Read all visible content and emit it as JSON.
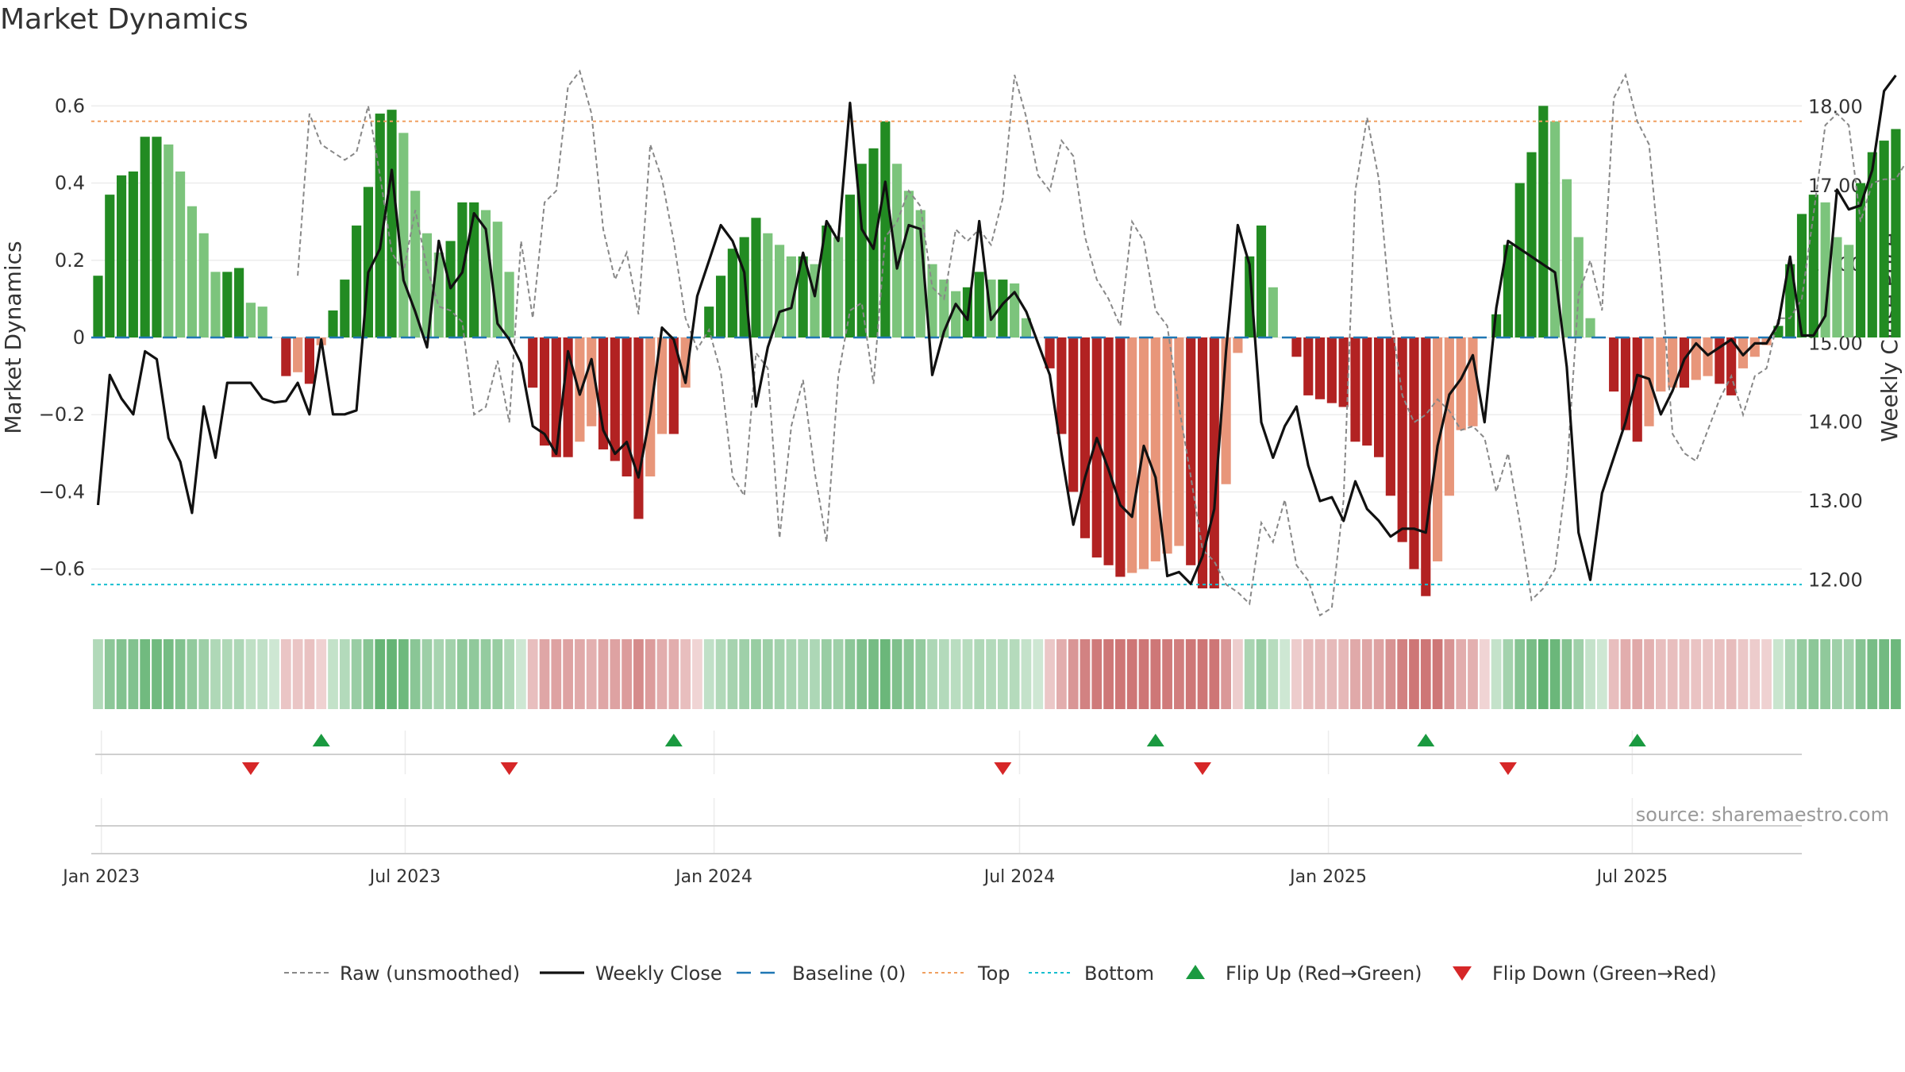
{
  "title": "Market Dynamics",
  "source": "source: sharemaestro.com",
  "colors": {
    "strong_green": "#228B22",
    "light_green": "#7CC47C",
    "strong_red": "#B22222",
    "light_red": "#E8967A",
    "raw": "#888888",
    "close": "#111111",
    "baseline": "#1f77b4",
    "top": "#f0a060",
    "bottom": "#17becf",
    "flip_up": "#1a9a40",
    "flip_down": "#d62728"
  },
  "chart_data": {
    "type": "bar",
    "title": "Market Dynamics",
    "ylabel": "Market Dynamics",
    "y2label": "Weekly Close Price",
    "ylim": [
      -0.72,
      0.72
    ],
    "y2lim": [
      11.55,
      18.6
    ],
    "yticks": [
      0.6,
      0.4,
      0.2,
      0,
      -0.2,
      -0.4,
      -0.6
    ],
    "ytick_labels": [
      "0.6",
      "0.4",
      "0.2",
      "0",
      "−0.2",
      "−0.4",
      "−0.6"
    ],
    "y2ticks": [
      18,
      17,
      16,
      15,
      14,
      13,
      12
    ],
    "y2tick_labels": [
      "18.00",
      "17.00",
      "16.00",
      "15.00",
      "14.00",
      "13.00",
      "12.00"
    ],
    "x_start": "2022-12-26",
    "x_end": "2025-10-10",
    "xticks": [
      "2023-01-01",
      "2023-07-01",
      "2024-01-01",
      "2024-07-01",
      "2025-01-01",
      "2025-07-01"
    ],
    "xtick_labels": [
      "Jan 2023",
      "Jul 2023",
      "Jan 2024",
      "Jul 2024",
      "Jan 2025",
      "Jul 2025"
    ],
    "first_week": "2022-12-30",
    "top_line": 0.56,
    "bottom_line": -0.64,
    "baseline": 0,
    "dynamics": [
      0.16,
      0.37,
      0.42,
      0.43,
      0.52,
      0.52,
      0.5,
      0.43,
      0.34,
      0.27,
      0.17,
      0.17,
      0.18,
      0.09,
      0.08,
      0,
      -0.1,
      -0.09,
      -0.12,
      -0.02,
      0.07,
      0.15,
      0.29,
      0.39,
      0.58,
      0.59,
      0.53,
      0.38,
      0.27,
      0.22,
      0.25,
      0.35,
      0.35,
      0.33,
      0.3,
      0.17,
      0,
      -0.13,
      -0.28,
      -0.31,
      -0.31,
      -0.27,
      -0.23,
      -0.29,
      -0.32,
      -0.36,
      -0.47,
      -0.36,
      -0.25,
      -0.25,
      -0.13,
      0,
      0.08,
      0.16,
      0.23,
      0.26,
      0.31,
      0.27,
      0.24,
      0.21,
      0.21,
      0.19,
      0.29,
      0.26,
      0.37,
      0.45,
      0.49,
      0.56,
      0.45,
      0.38,
      0.33,
      0.19,
      0.15,
      0.12,
      0.13,
      0.17,
      0.15,
      0.15,
      0.14,
      0.05,
      0,
      -0.08,
      -0.25,
      -0.4,
      -0.52,
      -0.57,
      -0.59,
      -0.62,
      -0.61,
      -0.6,
      -0.58,
      -0.56,
      -0.54,
      -0.59,
      -0.65,
      -0.65,
      -0.38,
      -0.04,
      0.21,
      0.29,
      0.13,
      0,
      -0.05,
      -0.15,
      -0.16,
      -0.17,
      -0.18,
      -0.27,
      -0.28,
      -0.31,
      -0.41,
      -0.53,
      -0.6,
      -0.67,
      -0.58,
      -0.41,
      -0.24,
      -0.23,
      0,
      0.06,
      0.24,
      0.4,
      0.48,
      0.6,
      0.56,
      0.41,
      0.26,
      0.05,
      0,
      -0.14,
      -0.24,
      -0.27,
      -0.23,
      -0.14,
      -0.13,
      -0.13,
      -0.11,
      -0.1,
      -0.12,
      -0.15,
      -0.08,
      -0.05,
      -0.02,
      0.03,
      0.19,
      0.32,
      0.37,
      0.35,
      0.26,
      0.24,
      0.4,
      0.48,
      0.51,
      0.54
    ],
    "weekly_close": [
      12.95,
      14.6,
      14.3,
      14.1,
      14.9,
      14.8,
      13.8,
      13.5,
      12.85,
      14.2,
      13.55,
      14.5,
      14.5,
      14.5,
      14.3,
      14.25,
      14.27,
      14.5,
      14.1,
      15.05,
      14.1,
      14.1,
      14.15,
      15.9,
      16.2,
      17.2,
      15.8,
      15.4,
      14.95,
      16.3,
      15.7,
      15.9,
      16.65,
      16.45,
      15.25,
      15.05,
      14.75,
      13.95,
      13.85,
      13.6,
      14.9,
      14.35,
      14.8,
      13.9,
      13.6,
      13.75,
      13.3,
      14.1,
      15.2,
      15.05,
      14.5,
      15.6,
      16.05,
      16.5,
      16.3,
      15.9,
      14.2,
      14.95,
      15.4,
      15.45,
      16.15,
      15.6,
      16.55,
      16.3,
      18.05,
      16.45,
      16.2,
      17.05,
      15.95,
      16.5,
      16.45,
      14.6,
      15.15,
      15.5,
      15.3,
      16.55,
      15.3,
      15.5,
      15.65,
      15.4,
      15.0,
      14.6,
      13.6,
      12.7,
      13.3,
      13.8,
      13.4,
      12.95,
      12.8,
      13.7,
      13.3,
      12.05,
      12.1,
      11.95,
      12.3,
      12.9,
      14.9,
      16.5,
      16.0,
      14.0,
      13.55,
      13.95,
      14.2,
      13.45,
      13.0,
      13.05,
      12.75,
      13.25,
      12.9,
      12.75,
      12.55,
      12.65,
      12.65,
      12.6,
      13.7,
      14.35,
      14.55,
      14.85,
      14.0,
      15.45,
      16.3,
      16.2,
      16.1,
      16.0,
      15.9,
      14.7,
      12.6,
      12.0,
      13.1,
      13.55,
      14.0,
      14.6,
      14.55,
      14.1,
      14.4,
      14.8,
      15.0,
      14.85,
      14.95,
      15.05,
      14.85,
      15.0,
      15.0,
      15.25,
      16.1,
      15.1,
      15.1,
      15.35,
      16.95,
      16.7,
      16.75,
      17.2,
      18.2,
      18.4
    ],
    "raw": [
      0.16,
      0.58,
      0.5,
      0.48,
      0.46,
      0.48,
      0.6,
      0.42,
      0.22,
      0.17,
      0.33,
      0.18,
      0.08,
      0.07,
      0.04,
      -0.2,
      -0.18,
      -0.06,
      -0.22,
      0.25,
      0.05,
      0.35,
      0.38,
      0.65,
      0.69,
      0.58,
      0.28,
      0.15,
      0.22,
      0.06,
      0.5,
      0.41,
      0.25,
      0.05,
      -0.03,
      0.02,
      -0.09,
      -0.36,
      -0.41,
      -0.04,
      -0.08,
      -0.52,
      -0.23,
      -0.11,
      -0.35,
      -0.53,
      -0.1,
      0.07,
      0.09,
      -0.12,
      0.26,
      0.3,
      0.38,
      0.34,
      0.13,
      0.1,
      0.28,
      0.25,
      0.28,
      0.24,
      0.36,
      0.68,
      0.57,
      0.42,
      0.38,
      0.51,
      0.47,
      0.26,
      0.15,
      0.1,
      0.03,
      0.3,
      0.25,
      0.07,
      0.03,
      -0.18,
      -0.36,
      -0.55,
      -0.58,
      -0.64,
      -0.66,
      -0.69,
      -0.48,
      -0.53,
      -0.42,
      -0.59,
      -0.63,
      -0.72,
      -0.7,
      -0.42,
      0.38,
      0.57,
      0.41,
      0.06,
      -0.15,
      -0.22,
      -0.2,
      -0.16,
      -0.19,
      -0.24,
      -0.23,
      -0.26,
      -0.4,
      -0.3,
      -0.48,
      -0.68,
      -0.65,
      -0.6,
      -0.35,
      0.11,
      0.2,
      0.07,
      0.62,
      0.68,
      0.56,
      0.5,
      0.17,
      -0.25,
      -0.3,
      -0.32,
      -0.24,
      -0.16,
      -0.1,
      -0.2,
      -0.1,
      -0.08,
      0.05,
      0.05,
      0.1,
      0.32,
      0.55,
      0.58,
      0.55,
      0.3,
      0.4,
      0.41,
      0.41,
      0.46,
      0.56,
      0.52,
      0.55
    ],
    "raw_shift_weeks": 17,
    "flip_up": [
      "2023-05-12",
      "2023-12-08",
      "2024-09-20",
      "2025-02-28",
      "2025-07-04"
    ],
    "flip_down": [
      "2023-03-31",
      "2023-09-01",
      "2024-06-21",
      "2024-10-18",
      "2025-04-18"
    ],
    "legend": {
      "placement": "bottom",
      "entries": [
        "Raw (unsmoothed)",
        "Weekly Close",
        "Baseline (0)",
        "Top",
        "Bottom",
        "Flip Up (Red→Green)",
        "Flip Down (Green→Red)"
      ]
    }
  }
}
